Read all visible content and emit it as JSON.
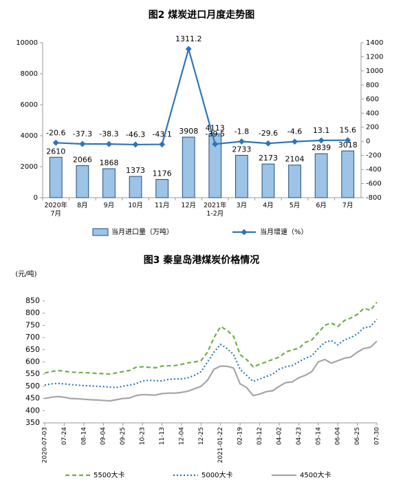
{
  "chart_data": [
    {
      "type": "bar",
      "title": "图2  煤炭进口月度走势图",
      "categories": [
        "2020年\n7月",
        "8月",
        "9月",
        "10月",
        "11月",
        "12月",
        "2021年\n1-2月",
        "3月",
        "4月",
        "5月",
        "6月",
        "7月"
      ],
      "series": [
        {
          "name": "当月进口量（万吨）",
          "color": "#9dc3e6",
          "type": "bar",
          "values": [
            2610,
            2066,
            1868,
            1373,
            1176,
            3908,
            4113,
            2733,
            2173,
            2104,
            2839,
            3018
          ]
        },
        {
          "name": "当月增速（%）",
          "color": "#2e75b6",
          "type": "line",
          "axis": "y2",
          "values": [
            -20.6,
            -37.3,
            -38.3,
            -46.3,
            -43.1,
            1311.2,
            -39.5,
            -1.8,
            -29.6,
            -4.6,
            13.1,
            15.6
          ]
        }
      ],
      "ylim": [
        0,
        10000
      ],
      "yticks": [
        0,
        2000,
        4000,
        6000,
        8000,
        10000
      ],
      "y2lim": [
        -800,
        1400
      ],
      "y2ticks": [
        -800,
        -600,
        -400,
        -200,
        0,
        200,
        400,
        600,
        800,
        1000,
        1200,
        1400
      ],
      "legend": "bottom"
    },
    {
      "type": "line",
      "title": "图3  秦皇岛港煤炭价格情况",
      "y_label": "(元/吨)",
      "categories": [
        "2020-07-03",
        null,
        null,
        "07-24",
        null,
        null,
        "08-14",
        null,
        null,
        "09-04",
        null,
        null,
        "09-25",
        null,
        null,
        "10-23",
        null,
        null,
        "11-13",
        null,
        null,
        "12-04",
        null,
        null,
        "12-25",
        null,
        null,
        "2021-01-22",
        null,
        null,
        "02-19",
        null,
        null,
        "03-12",
        null,
        null,
        "04-02",
        null,
        null,
        "04-23",
        null,
        null,
        "05-14",
        null,
        null,
        "06-04",
        null,
        null,
        "06-25",
        null,
        null,
        "07-30"
      ],
      "series": [
        {
          "name": "5500大卡",
          "color": "#70ad47",
          "dash": "6,4",
          "values": [
            555,
            560,
            565,
            562,
            558,
            557,
            556,
            555,
            553,
            552,
            550,
            555,
            560,
            565,
            578,
            580,
            578,
            576,
            583,
            584,
            585,
            590,
            596,
            600,
            605,
            640,
            700,
            745,
            730,
            705,
            630,
            610,
            580,
            590,
            600,
            610,
            620,
            640,
            650,
            655,
            680,
            690,
            720,
            750,
            760,
            745,
            770,
            780,
            795,
            820,
            812,
            845
          ]
        },
        {
          "name": "5000大卡",
          "color": "#2e75b6",
          "dash": "2,3",
          "values": [
            505,
            510,
            512,
            510,
            507,
            505,
            503,
            502,
            500,
            499,
            497,
            495,
            500,
            505,
            510,
            522,
            525,
            523,
            522,
            528,
            530,
            530,
            535,
            545,
            560,
            600,
            640,
            672,
            655,
            630,
            570,
            545,
            520,
            530,
            540,
            550,
            570,
            580,
            585,
            600,
            615,
            625,
            655,
            680,
            688,
            670,
            690,
            700,
            715,
            740,
            745,
            775
          ]
        },
        {
          "name": "4500大卡",
          "color": "#a5a5a5",
          "dash": "none",
          "values": [
            450,
            455,
            458,
            455,
            450,
            449,
            447,
            445,
            444,
            442,
            440,
            445,
            450,
            452,
            462,
            466,
            465,
            464,
            470,
            472,
            472,
            475,
            480,
            490,
            500,
            525,
            570,
            583,
            582,
            575,
            510,
            495,
            462,
            468,
            478,
            482,
            500,
            515,
            518,
            535,
            545,
            560,
            600,
            610,
            595,
            605,
            615,
            620,
            640,
            655,
            660,
            685
          ]
        }
      ],
      "ylim": [
        350,
        850
      ],
      "yticks": [
        350,
        400,
        450,
        500,
        550,
        600,
        650,
        700,
        750,
        800,
        850
      ],
      "legend": "bottom"
    }
  ]
}
